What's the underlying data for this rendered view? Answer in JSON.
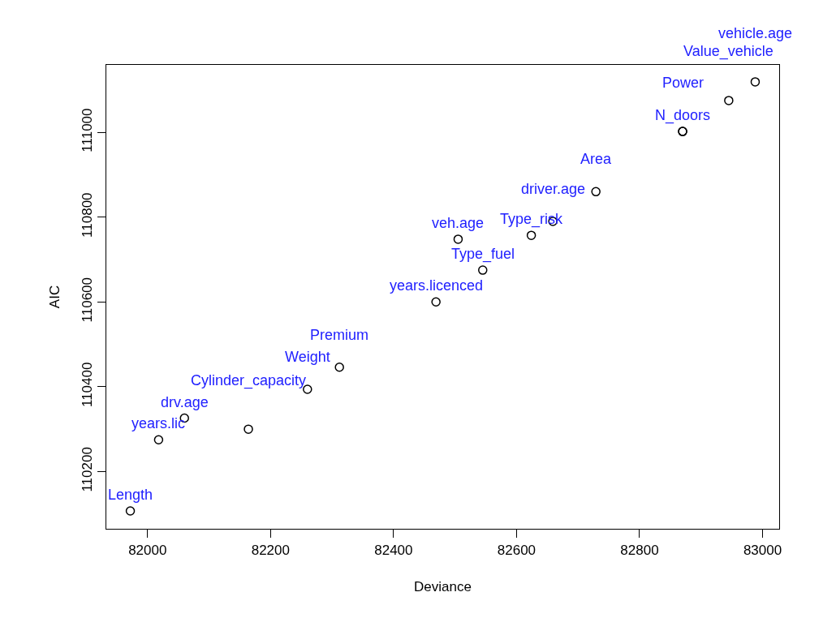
{
  "chart_data": {
    "type": "scatter",
    "xlabel": "Deviance",
    "ylabel": "AIC",
    "x": [
      81972,
      82018,
      82060,
      82164,
      82260,
      82312,
      82469,
      82545,
      82505,
      82624,
      82659,
      82729,
      82870,
      82870,
      82945,
      82988
    ],
    "series": [
      {
        "color": "#000000",
        "values": [
          110107,
          110275,
          110326,
          110300,
          110394,
          110446,
          110600,
          110675,
          110748,
          110757,
          110790,
          110860,
          111002,
          111002,
          111075,
          111119
        ]
      }
    ],
    "marker": "circle",
    "xlim": [
      81933,
      83027
    ],
    "ylim": [
      110065,
      111159
    ],
    "xticks": [
      82000,
      82200,
      82400,
      82600,
      82800,
      83000
    ],
    "yticks": [
      110200,
      110400,
      110600,
      110800,
      111000
    ],
    "annotations": [
      {
        "text": "Length",
        "x": 81972,
        "y": 110107
      },
      {
        "text": "years.lic",
        "x": 82018,
        "y": 110275
      },
      {
        "text": "drv.age",
        "x": 82060,
        "y": 110326
      },
      {
        "text": "Cylinder_capacity",
        "x": 82164,
        "y": 110300
      },
      {
        "text": "Weight",
        "x": 82260,
        "y": 110394
      },
      {
        "text": "Premium",
        "x": 82312,
        "y": 110446
      },
      {
        "text": "years.licenced",
        "x": 82469,
        "y": 110600
      },
      {
        "text": "Type_fuel",
        "x": 82545,
        "y": 110675
      },
      {
        "text": "veh.age",
        "x": 82505,
        "y": 110748
      },
      {
        "text": "Type_risk",
        "x": 82624,
        "y": 110757
      },
      {
        "text": "driver.age",
        "x": 82659,
        "y": 110790
      },
      {
        "text": "Area",
        "x": 82729,
        "y": 110860
      },
      {
        "text": "N_doors",
        "x": 82870,
        "y": 111002
      },
      {
        "text": "Power",
        "x": 82870,
        "y": 111002
      },
      {
        "text": "Value_vehicle",
        "x": 82945,
        "y": 111075
      },
      {
        "text": "vehicle.age",
        "x": 82988,
        "y": 111119
      }
    ]
  }
}
